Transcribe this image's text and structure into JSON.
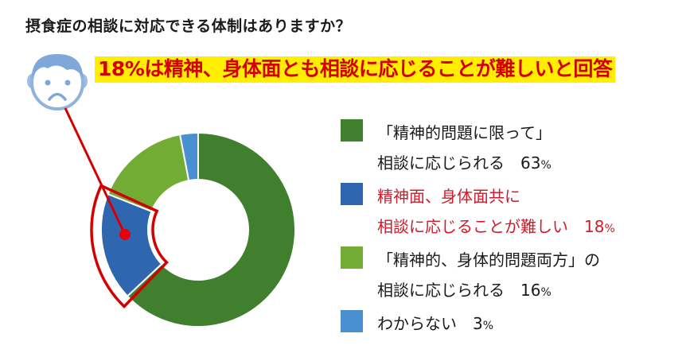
{
  "title": "摂食症の相談に対応できる体制はありますか？",
  "headline": "18%は精神、身体面とも相談に応じることが難しいと回答",
  "icon": "sad-face-icon",
  "legend": [
    {
      "line1": "「精神的問題に限って」",
      "line2": "相談に応じられる",
      "value": "63",
      "unit": "%",
      "color": "#3f7f2e",
      "highlight": false
    },
    {
      "line1": "精神面、身体面共に",
      "line2": "相談に応じることが難しい",
      "value": "18",
      "unit": "%",
      "color": "#2f66b0",
      "highlight": true
    },
    {
      "line1": "「精神的、身体的問題両方」の",
      "line2": "相談に応じられる",
      "value": "16",
      "unit": "%",
      "color": "#72ac35",
      "highlight": false
    },
    {
      "line1": "わからない",
      "line2": "",
      "value": "3",
      "unit": "%",
      "color": "#4a90d0",
      "highlight": false
    }
  ],
  "colors": {
    "highlight_red": "#d40000",
    "headline_bg": "#ffee00",
    "face": "#7fa8d8"
  },
  "chart_data": {
    "type": "pie",
    "subtype": "donut",
    "title": "摂食症の相談に対応できる体制はありますか？",
    "annotation": "18%は精神、身体面とも相談に応じることが難しいと回答",
    "categories": [
      "「精神的問題に限って」相談に応じられる",
      "精神面、身体面共に相談に応じることが難しい",
      "「精神的、身体的問題両方」の相談に応じられる",
      "わからない"
    ],
    "values": [
      63,
      18,
      16,
      3
    ],
    "unit": "%",
    "colors": [
      "#3f7f2e",
      "#2f66b0",
      "#72ac35",
      "#4a90d0"
    ],
    "start_angle": "top, clockwise",
    "highlighted_slice": 1,
    "legend_position": "right"
  }
}
